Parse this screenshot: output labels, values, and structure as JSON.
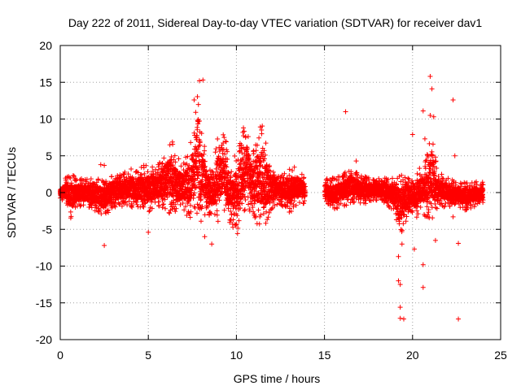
{
  "chart_data": {
    "type": "scatter",
    "title": "Day 222 of 2011, Sidereal Day-to-day VTEC variation (SDTVAR) for receiver dav1",
    "xlabel": "GPS time / hours",
    "ylabel": "SDTVAR / TECUs",
    "xlim": [
      0,
      25
    ],
    "ylim": [
      -20,
      20
    ],
    "xticks": [
      "0",
      "5",
      "10",
      "15",
      "20",
      "25"
    ],
    "yticks": [
      "-20",
      "-15",
      "-10",
      "-5",
      "0",
      "5",
      "10",
      "15",
      "20"
    ],
    "grid": true,
    "marker": "+",
    "color": "#ff0000",
    "envelope": {
      "description": "approximate upper/lower extent of the dense SDTVAR scatter band (hours, TECU)",
      "x": [
        0.0,
        0.3,
        0.6,
        1.0,
        1.5,
        2.0,
        2.5,
        3.0,
        3.5,
        4.0,
        4.5,
        5.0,
        5.5,
        6.0,
        6.3,
        6.6,
        7.0,
        7.3,
        7.6,
        7.8,
        8.0,
        8.3,
        8.6,
        9.0,
        9.3,
        9.6,
        10.0,
        10.3,
        10.6,
        10.9,
        11.2,
        11.5,
        11.8,
        12.1,
        12.4,
        12.7,
        13.0,
        13.3,
        13.6,
        13.9,
        15.0,
        15.5,
        16.0,
        16.5,
        17.0,
        17.5,
        18.0,
        18.5,
        19.0,
        19.3,
        19.6,
        19.9,
        20.2,
        20.5,
        20.8,
        21.1,
        21.4,
        21.7,
        22.0,
        22.5,
        23.0,
        23.5,
        24.0
      ],
      "upper": [
        0.5,
        2.0,
        2.5,
        2.0,
        2.0,
        2.0,
        2.0,
        2.5,
        2.5,
        3.5,
        3.5,
        4.0,
        3.5,
        6.0,
        7.5,
        5.0,
        4.0,
        6.0,
        9.0,
        15.0,
        9.0,
        5.0,
        3.0,
        9.0,
        9.0,
        4.0,
        5.5,
        8.0,
        9.0,
        5.0,
        8.5,
        9.5,
        5.0,
        3.5,
        2.5,
        2.5,
        3.5,
        3.5,
        3.0,
        2.0,
        2.0,
        2.0,
        2.5,
        3.5,
        2.5,
        2.0,
        2.0,
        2.0,
        2.0,
        2.5,
        2.0,
        2.0,
        2.5,
        4.0,
        5.0,
        9.0,
        3.0,
        2.5,
        2.0,
        1.5,
        1.5,
        1.5,
        1.5
      ],
      "lower": [
        -1.0,
        -1.5,
        -3.5,
        -2.0,
        -2.0,
        -2.5,
        -3.5,
        -2.0,
        -2.0,
        -2.0,
        -2.5,
        -3.0,
        -2.0,
        -2.5,
        -3.0,
        -3.0,
        -2.5,
        -3.5,
        -4.0,
        -3.0,
        -4.0,
        -3.0,
        -3.5,
        -4.0,
        -2.5,
        -4.0,
        -6.0,
        -4.0,
        -2.0,
        -3.0,
        -4.5,
        -5.5,
        -3.5,
        -2.0,
        -1.5,
        -2.0,
        -3.0,
        -2.0,
        -1.5,
        -1.5,
        -1.5,
        -2.5,
        -2.0,
        -1.5,
        -1.5,
        -1.5,
        -1.0,
        -1.5,
        -3.0,
        -6.0,
        -4.0,
        -2.5,
        -3.5,
        -3.0,
        -3.5,
        -4.5,
        -2.5,
        -2.0,
        -2.0,
        -2.0,
        -2.5,
        -2.0,
        -1.5
      ]
    },
    "outliers": [
      {
        "x": 2.3,
        "y": 3.8
      },
      {
        "x": 2.5,
        "y": 3.7
      },
      {
        "x": 2.5,
        "y": -7.2
      },
      {
        "x": 5.0,
        "y": -5.4
      },
      {
        "x": 7.6,
        "y": 12.6
      },
      {
        "x": 7.9,
        "y": 15.2
      },
      {
        "x": 8.1,
        "y": 15.3
      },
      {
        "x": 8.2,
        "y": -6.0
      },
      {
        "x": 8.6,
        "y": -7.0
      },
      {
        "x": 10.4,
        "y": 8.8
      },
      {
        "x": 16.2,
        "y": 11.0
      },
      {
        "x": 16.8,
        "y": 4.3
      },
      {
        "x": 19.2,
        "y": -8.7
      },
      {
        "x": 19.2,
        "y": -12.0
      },
      {
        "x": 19.3,
        "y": -12.5
      },
      {
        "x": 19.3,
        "y": -15.6
      },
      {
        "x": 19.3,
        "y": -17.1
      },
      {
        "x": 19.5,
        "y": -17.2
      },
      {
        "x": 19.4,
        "y": -7.0
      },
      {
        "x": 20.0,
        "y": 7.9
      },
      {
        "x": 20.1,
        "y": -7.7
      },
      {
        "x": 20.6,
        "y": 11.1
      },
      {
        "x": 20.6,
        "y": -9.8
      },
      {
        "x": 20.6,
        "y": -12.9
      },
      {
        "x": 20.7,
        "y": 7.3
      },
      {
        "x": 21.0,
        "y": 15.8
      },
      {
        "x": 21.1,
        "y": 14.1
      },
      {
        "x": 21.2,
        "y": 10.3
      },
      {
        "x": 21.0,
        "y": 10.5
      },
      {
        "x": 21.3,
        "y": -6.5
      },
      {
        "x": 22.3,
        "y": 12.6
      },
      {
        "x": 22.4,
        "y": 5.0
      },
      {
        "x": 22.3,
        "y": -3.3
      },
      {
        "x": 22.6,
        "y": -6.9
      },
      {
        "x": 22.6,
        "y": -17.2
      }
    ]
  }
}
